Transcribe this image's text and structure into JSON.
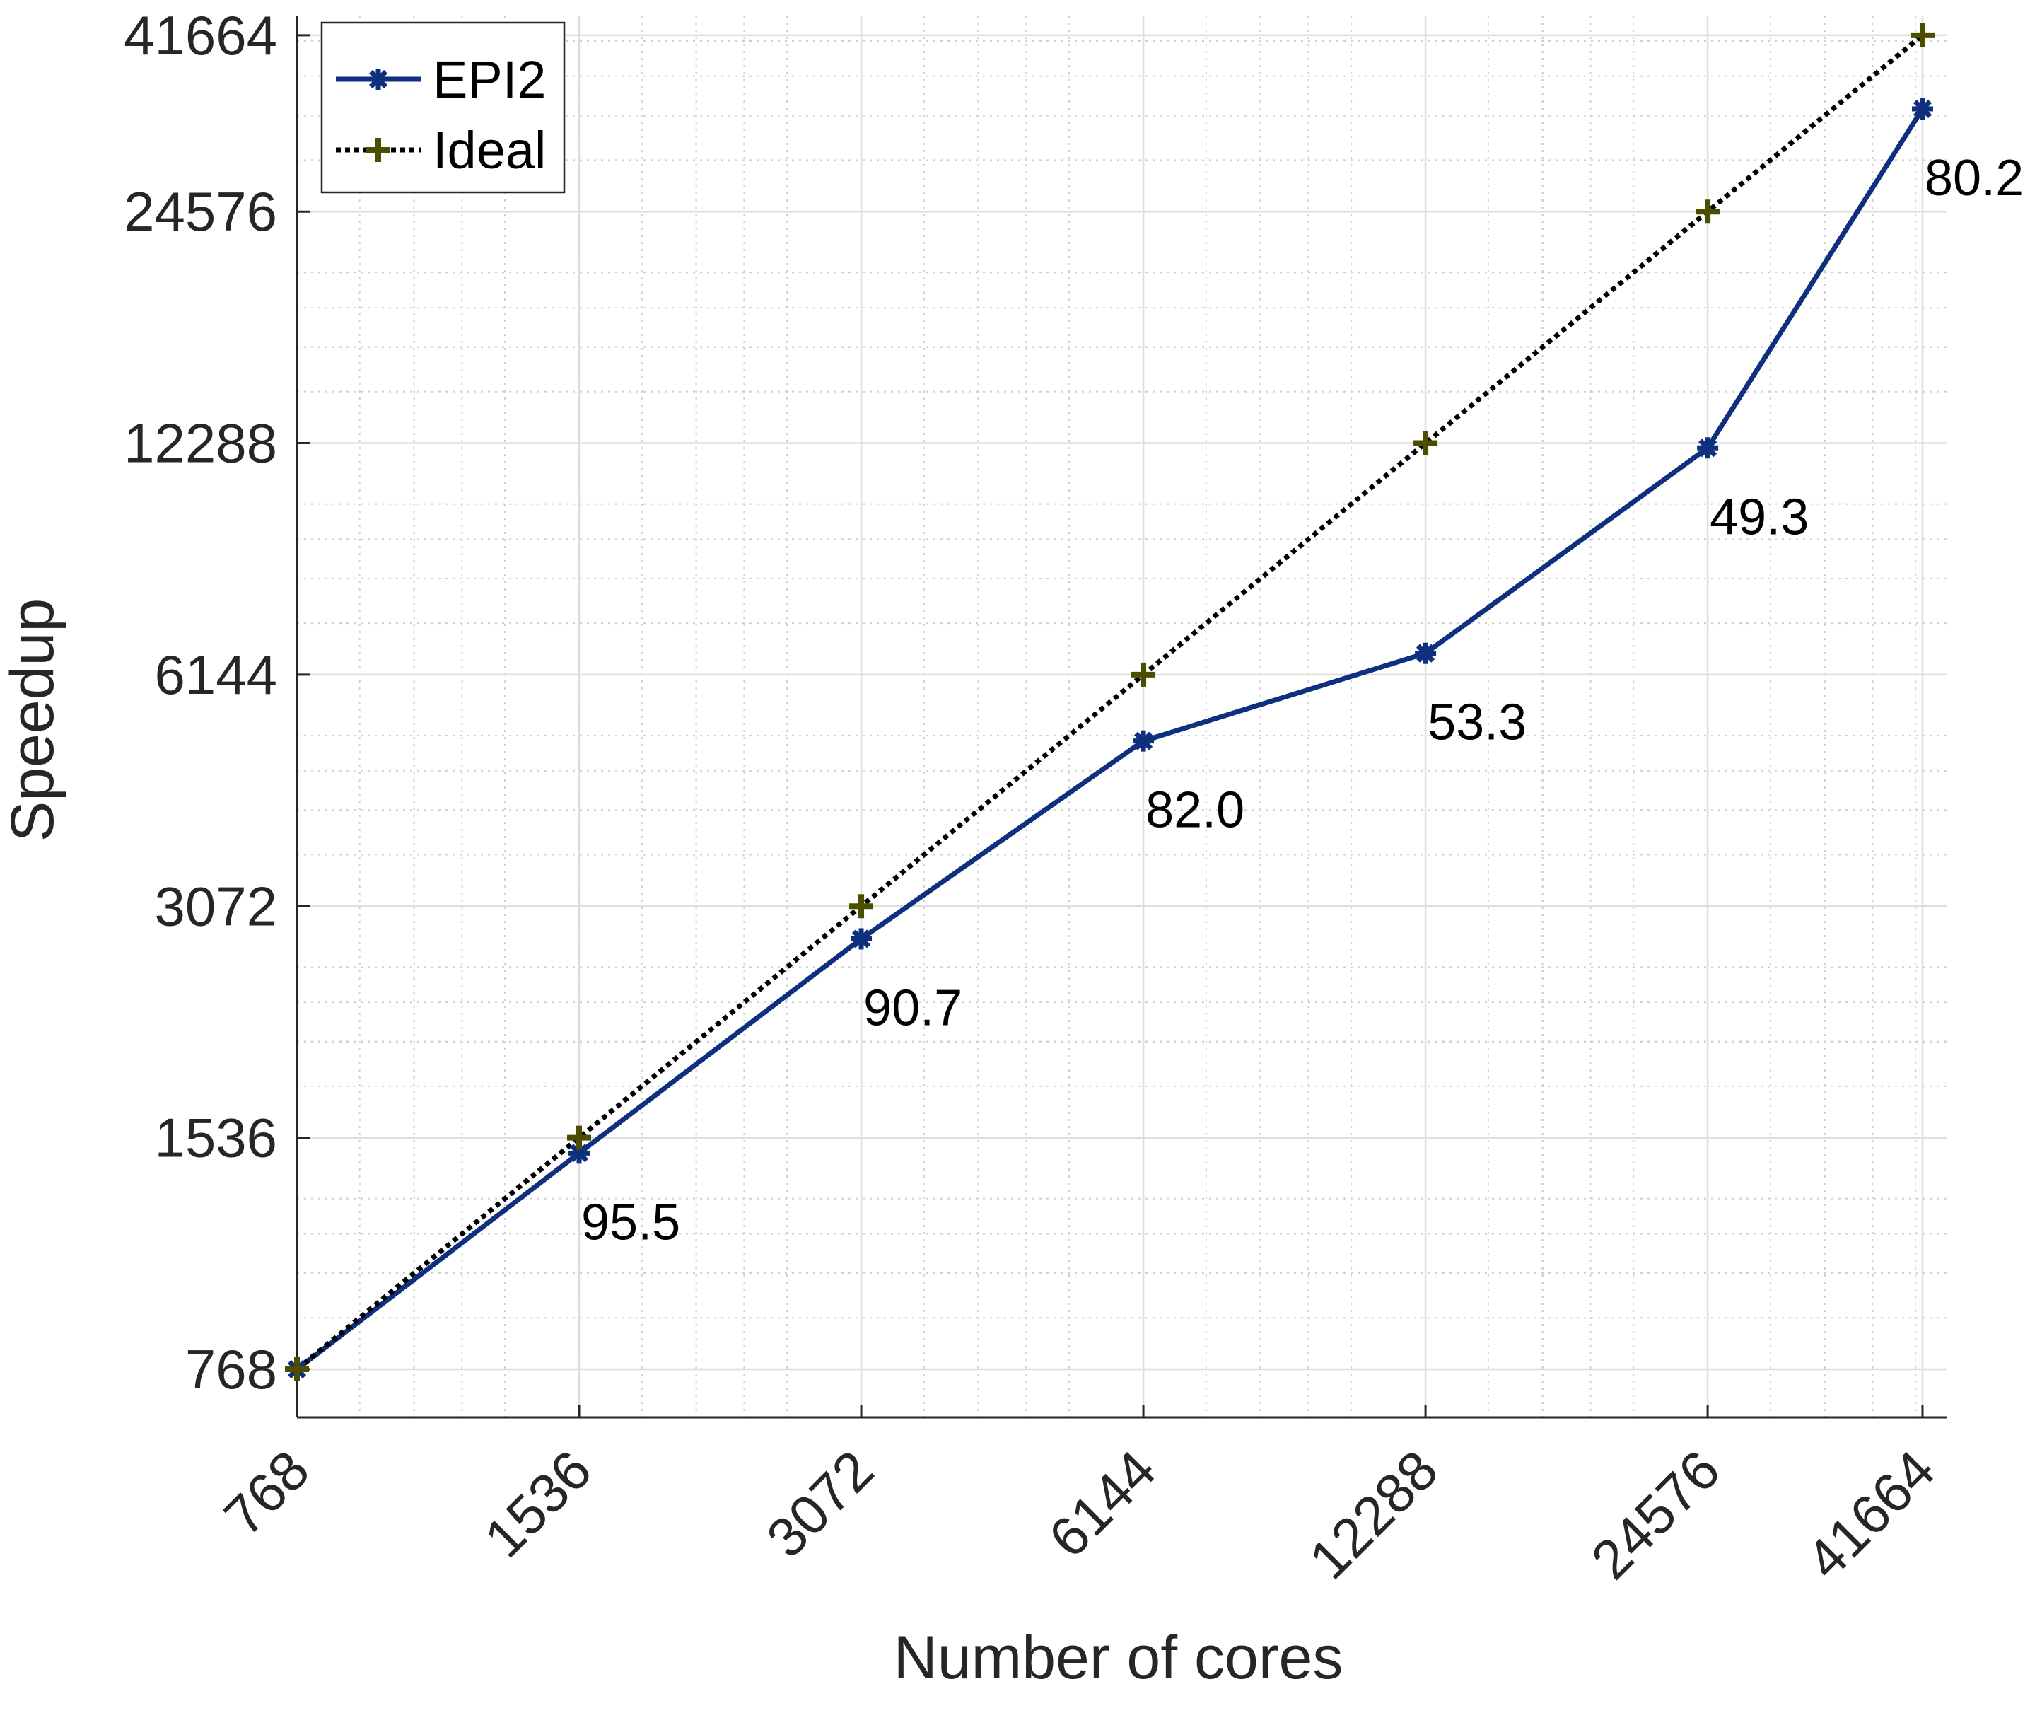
{
  "chart_data": {
    "type": "line",
    "scale": "log2-log2",
    "title": "",
    "xlabel": "Number of cores",
    "ylabel": "Speedup",
    "x": [
      768,
      1536,
      3072,
      6144,
      12288,
      24576,
      41664
    ],
    "x_tick_labels": [
      "768",
      "1536",
      "3072",
      "6144",
      "12288",
      "24576",
      "41664"
    ],
    "y_ticks": [
      768,
      1536,
      3072,
      6144,
      12288,
      24576,
      41664
    ],
    "y_tick_labels": [
      "768",
      "1536",
      "3072",
      "6144",
      "12288",
      "24576",
      "41664"
    ],
    "xlim": [
      768,
      44200
    ],
    "ylim": [
      665,
      44200
    ],
    "grid": true,
    "legend_position": "top-left",
    "series": [
      {
        "name": "EPI2",
        "values": [
          768,
          1467,
          2786,
          5038,
          6550,
          12115,
          33420
        ],
        "color": "#0f2f7f",
        "line_style": "solid",
        "marker": "asterisk",
        "annotations": [
          "",
          "95.5",
          "90.7",
          "82.0",
          "53.3",
          "49.3",
          "80.2"
        ]
      },
      {
        "name": "Ideal",
        "values": [
          768,
          1536,
          3072,
          6144,
          12288,
          24576,
          41664
        ],
        "color": "#000000",
        "marker_color": "#4d4d00",
        "line_style": "dotted",
        "marker": "plus"
      }
    ]
  }
}
